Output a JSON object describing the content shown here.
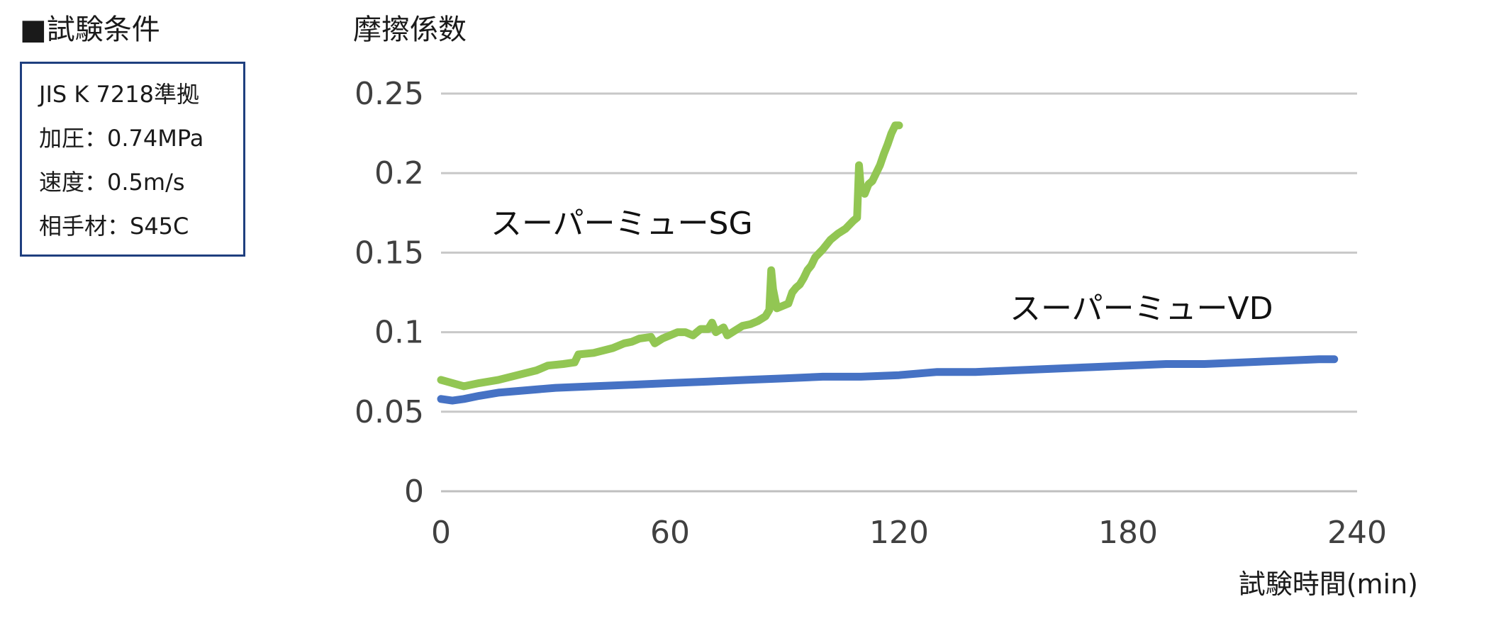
{
  "conditions": {
    "heading": "■試験条件",
    "lines": [
      "JIS K 7218準拠",
      "加圧：0.74MPa",
      "速度：0.5m/s",
      "相手材：S45C"
    ]
  },
  "colors": {
    "sg": "#92c653",
    "vd": "#4672c4",
    "grid": "#c8c8c8",
    "box_border": "#1f3f7f"
  },
  "chart_data": {
    "type": "line",
    "title": "摩擦係数",
    "xlabel": "試験時間(min)",
    "ylabel": "",
    "xlim": [
      0,
      240
    ],
    "ylim": [
      0,
      0.25
    ],
    "x_ticks": [
      "0",
      "60",
      "120",
      "180",
      "240"
    ],
    "y_ticks": [
      "0",
      "0.05",
      "0.1",
      "0.15",
      "0.2",
      "0.25"
    ],
    "grid": true,
    "legend": "none",
    "series": [
      {
        "name": "スーパーミューSG",
        "color": "#92c653",
        "points": [
          [
            0,
            0.07
          ],
          [
            3,
            0.068
          ],
          [
            6,
            0.066
          ],
          [
            10,
            0.068
          ],
          [
            15,
            0.07
          ],
          [
            20,
            0.073
          ],
          [
            25,
            0.076
          ],
          [
            28,
            0.079
          ],
          [
            32,
            0.08
          ],
          [
            35,
            0.081
          ],
          [
            36,
            0.086
          ],
          [
            40,
            0.087
          ],
          [
            45,
            0.09
          ],
          [
            48,
            0.093
          ],
          [
            50,
            0.094
          ],
          [
            52,
            0.096
          ],
          [
            55,
            0.097
          ],
          [
            56,
            0.093
          ],
          [
            58,
            0.096
          ],
          [
            60,
            0.098
          ],
          [
            62,
            0.1
          ],
          [
            64,
            0.1
          ],
          [
            66,
            0.098
          ],
          [
            68,
            0.102
          ],
          [
            70,
            0.102
          ],
          [
            71,
            0.106
          ],
          [
            72,
            0.1
          ],
          [
            74,
            0.103
          ],
          [
            75,
            0.098
          ],
          [
            77,
            0.101
          ],
          [
            79,
            0.104
          ],
          [
            81,
            0.105
          ],
          [
            83,
            0.107
          ],
          [
            85,
            0.11
          ],
          [
            86,
            0.114
          ],
          [
            86.5,
            0.139
          ],
          [
            87,
            0.127
          ],
          [
            88,
            0.115
          ],
          [
            89,
            0.116
          ],
          [
            91,
            0.118
          ],
          [
            92,
            0.125
          ],
          [
            93,
            0.128
          ],
          [
            94,
            0.13
          ],
          [
            95,
            0.134
          ],
          [
            96,
            0.139
          ],
          [
            97,
            0.142
          ],
          [
            98,
            0.147
          ],
          [
            100,
            0.152
          ],
          [
            102,
            0.158
          ],
          [
            104,
            0.162
          ],
          [
            106,
            0.165
          ],
          [
            108,
            0.17
          ],
          [
            109,
            0.172
          ],
          [
            109.5,
            0.205
          ],
          [
            110,
            0.19
          ],
          [
            111,
            0.187
          ],
          [
            112,
            0.193
          ],
          [
            113,
            0.195
          ],
          [
            114,
            0.2
          ],
          [
            115,
            0.205
          ],
          [
            116,
            0.212
          ],
          [
            117,
            0.218
          ],
          [
            118,
            0.225
          ],
          [
            119,
            0.23
          ],
          [
            120,
            0.23
          ]
        ]
      },
      {
        "name": "スーパーミューVD",
        "color": "#4672c4",
        "points": [
          [
            0,
            0.058
          ],
          [
            3,
            0.057
          ],
          [
            6,
            0.058
          ],
          [
            10,
            0.06
          ],
          [
            15,
            0.062
          ],
          [
            20,
            0.063
          ],
          [
            30,
            0.065
          ],
          [
            40,
            0.066
          ],
          [
            50,
            0.067
          ],
          [
            60,
            0.068
          ],
          [
            70,
            0.069
          ],
          [
            80,
            0.07
          ],
          [
            90,
            0.071
          ],
          [
            100,
            0.072
          ],
          [
            110,
            0.072
          ],
          [
            120,
            0.073
          ],
          [
            130,
            0.075
          ],
          [
            140,
            0.075
          ],
          [
            150,
            0.076
          ],
          [
            160,
            0.077
          ],
          [
            170,
            0.078
          ],
          [
            180,
            0.079
          ],
          [
            190,
            0.08
          ],
          [
            200,
            0.08
          ],
          [
            210,
            0.081
          ],
          [
            220,
            0.082
          ],
          [
            230,
            0.083
          ],
          [
            234,
            0.083
          ]
        ]
      }
    ]
  }
}
